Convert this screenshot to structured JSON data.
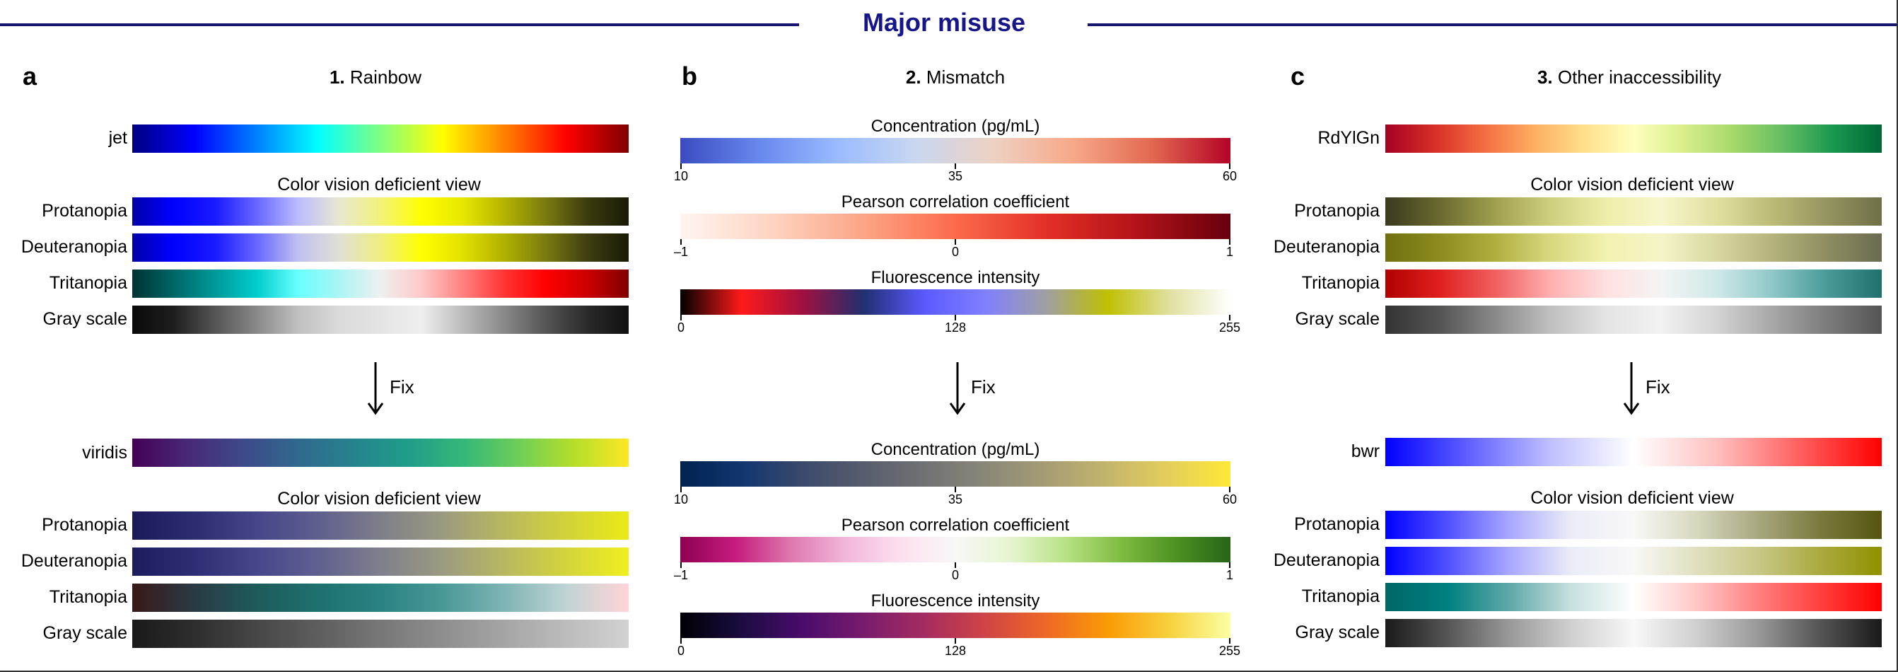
{
  "header": {
    "title": "Major misuse",
    "line_color": "#16166e"
  },
  "panels": [
    {
      "letter": "a",
      "number": "1.",
      "title": "Rainbow",
      "before": {
        "map_name": "jet",
        "cvd_title": "Color vision deficient view",
        "rows": [
          {
            "label": "Protanopia",
            "colors": [
              "#0000a8",
              "#0000ff",
              "#1a1aff",
              "#6666ff",
              "#bbbbff",
              "#e8e8d0",
              "#f2f27a",
              "#ffff00",
              "#e6e600",
              "#b3b300",
              "#7a7a10",
              "#3b3b10",
              "#1a1a05"
            ]
          },
          {
            "label": "Deuteranopia",
            "colors": [
              "#0000a8",
              "#0000ff",
              "#1a1aff",
              "#6666ff",
              "#c0c0f0",
              "#e0e0d6",
              "#eeee80",
              "#ffff00",
              "#e0e000",
              "#b0b000",
              "#7a7a10",
              "#3e3e12",
              "#1a1a05"
            ]
          },
          {
            "label": "Tritanopia",
            "colors": [
              "#003333",
              "#006666",
              "#009999",
              "#00cccc",
              "#66ffff",
              "#aaf5f5",
              "#eef0f0",
              "#ffc8c8",
              "#ff8080",
              "#ff3333",
              "#ff0000",
              "#cc0000",
              "#800000"
            ]
          },
          {
            "label": "Gray scale",
            "colors": [
              "#0a0a0a",
              "#1e1e1e",
              "#555555",
              "#888888",
              "#c0c0c0",
              "#dadada",
              "#e4e4e4",
              "#eeeeee",
              "#bbbbbb",
              "#888888",
              "#555555",
              "#2a2a2a",
              "#101010"
            ]
          }
        ],
        "main_colors": [
          "#00007f",
          "#0000ff",
          "#0080ff",
          "#00ffff",
          "#80ff80",
          "#ffff00",
          "#ff8000",
          "#ff0000",
          "#7f0000"
        ]
      },
      "fix_label": "Fix",
      "after": {
        "map_name": "viridis",
        "cvd_title": "Color vision deficient view",
        "main_colors": [
          "#440154",
          "#482878",
          "#3e4989",
          "#31688e",
          "#26828e",
          "#1f9e89",
          "#35b779",
          "#6ece58",
          "#b5de2b",
          "#fde725"
        ],
        "rows": [
          {
            "label": "Protanopia",
            "colors": [
              "#1a1a5a",
              "#2c2c72",
              "#45458a",
              "#5f5f8f",
              "#7e7e8a",
              "#9a9a80",
              "#b8b860",
              "#d2d23a",
              "#eaea18"
            ]
          },
          {
            "label": "Deuteranopia",
            "colors": [
              "#1c1c5e",
              "#2e2e76",
              "#46468c",
              "#606090",
              "#7f7f8c",
              "#9b9b82",
              "#b8b862",
              "#d4d43c",
              "#efef20"
            ]
          },
          {
            "label": "Tritanopia",
            "colors": [
              "#3a1818",
              "#2a3a44",
              "#1f5a5a",
              "#1f7070",
              "#2a8282",
              "#4a9898",
              "#7fb4b4",
              "#c0d4d4",
              "#ffd4d8"
            ]
          },
          {
            "label": "Gray scale",
            "colors": [
              "#1a1a1a",
              "#2e2e2e",
              "#474747",
              "#5e5e5e",
              "#777777",
              "#8e8e8e",
              "#a5a5a5",
              "#bcbcbc",
              "#d2d2d2"
            ]
          }
        ]
      }
    },
    {
      "letter": "b",
      "number": "2.",
      "title": "Mismatch",
      "fix_label": "Fix",
      "before_bars": [
        {
          "title": "Concentration (pg/mL)",
          "ticks": [
            "10",
            "35",
            "60"
          ],
          "colors": [
            "#3b4cc0",
            "#6788ee",
            "#9abbff",
            "#c9d7f0",
            "#edd1c2",
            "#f7a889",
            "#e26952",
            "#b40426"
          ]
        },
        {
          "title": "Pearson correlation coefficient",
          "ticks": [
            "–1",
            "0",
            "1"
          ],
          "colors": [
            "#fff5f0",
            "#fdd4c2",
            "#fca486",
            "#fb6b4b",
            "#e32f27",
            "#b11218",
            "#67000d"
          ]
        },
        {
          "title": "Fluorescence intensity",
          "ticks": [
            "0",
            "128",
            "255"
          ],
          "colors": [
            "#000000",
            "#ff1a1a",
            "#a01040",
            "#203070",
            "#5a5aff",
            "#8080ff",
            "#a0a0a0",
            "#c0c000",
            "#e0e0a0",
            "#ffffff"
          ]
        }
      ],
      "after_bars": [
        {
          "title": "Concentration (pg/mL)",
          "ticks": [
            "10",
            "35",
            "60"
          ],
          "colors": [
            "#00224e",
            "#123570",
            "#3b496c",
            "#575d6d",
            "#707173",
            "#8a8779",
            "#a69d75",
            "#c4b56c",
            "#e4cf5b",
            "#fee838"
          ]
        },
        {
          "title": "Pearson correlation coefficient",
          "ticks": [
            "–1",
            "0",
            "1"
          ],
          "colors": [
            "#8e0152",
            "#c51b7d",
            "#de77ae",
            "#f1b6da",
            "#fde0ef",
            "#f7f7f7",
            "#e6f5d0",
            "#b8e186",
            "#7fbc41",
            "#4d9221",
            "#276419"
          ]
        },
        {
          "title": "Fluorescence intensity",
          "ticks": [
            "0",
            "128",
            "255"
          ],
          "colors": [
            "#000004",
            "#1b0c41",
            "#4a0c6b",
            "#781c6d",
            "#a52c60",
            "#cf4446",
            "#ed6925",
            "#fb9b06",
            "#f7d13d",
            "#fcffa4"
          ]
        }
      ]
    },
    {
      "letter": "c",
      "number": "3.",
      "title": "Other inaccessibility",
      "fix_label": "Fix",
      "before": {
        "map_name": "RdYlGn",
        "cvd_title": "Color vision deficient view",
        "main_colors": [
          "#a50026",
          "#d73027",
          "#f46d43",
          "#fdae61",
          "#fee08b",
          "#ffffbf",
          "#d9ef8b",
          "#a6d96a",
          "#66bd63",
          "#1a9850",
          "#006837"
        ],
        "rows": [
          {
            "label": "Protanopia",
            "colors": [
              "#3a3a20",
              "#6a6a30",
              "#a0a050",
              "#cfcf80",
              "#eeeeaa",
              "#f6f6cc",
              "#e0e0a0",
              "#bcbc78",
              "#959560",
              "#6f6f48"
            ]
          },
          {
            "label": "Deuteranopia",
            "colors": [
              "#707010",
              "#8c8c20",
              "#b0b040",
              "#d8d880",
              "#f2f2b0",
              "#f4f4c8",
              "#d8d8a0",
              "#b4b47c",
              "#8e8e62",
              "#6a6a50"
            ]
          },
          {
            "label": "Tritanopia",
            "colors": [
              "#b00000",
              "#e02020",
              "#f06060",
              "#ffb0b0",
              "#ffe0e0",
              "#f4f4f4",
              "#d0e8e8",
              "#90c8c8",
              "#4a9a9a",
              "#207070"
            ]
          },
          {
            "label": "Gray scale",
            "colors": [
              "#333333",
              "#555555",
              "#8a8a8a",
              "#c0c0c0",
              "#e4e4e4",
              "#f2f2f2",
              "#d4d4d4",
              "#a8a8a8",
              "#7c7c7c",
              "#555555"
            ]
          }
        ]
      },
      "after": {
        "map_name": "bwr",
        "cvd_title": "Color vision deficient view",
        "main_colors": [
          "#0000ff",
          "#6060ff",
          "#c0c0ff",
          "#ffffff",
          "#ffc0c0",
          "#ff6060",
          "#ff0000"
        ],
        "rows": [
          {
            "label": "Protanopia",
            "colors": [
              "#0000ff",
              "#5050ff",
              "#a8a8ff",
              "#ececf8",
              "#f8f8f8",
              "#d8d8c0",
              "#a8a880",
              "#7a7a40",
              "#555510"
            ]
          },
          {
            "label": "Deuteranopia",
            "colors": [
              "#0000ff",
              "#5050ff",
              "#a8a8ff",
              "#ececf8",
              "#f8f8f8",
              "#e0e0c0",
              "#c8c888",
              "#aaaa40",
              "#909000"
            ]
          },
          {
            "label": "Tritanopia",
            "colors": [
              "#006666",
              "#008080",
              "#60a8a8",
              "#c8e0e0",
              "#ffffff",
              "#ffc8c8",
              "#ff8080",
              "#ff4040",
              "#ff0000"
            ]
          },
          {
            "label": "Gray scale",
            "colors": [
              "#1a1a1a",
              "#555555",
              "#999999",
              "#d0d0d0",
              "#f8f8f8",
              "#d0d0d0",
              "#999999",
              "#555555",
              "#1a1a1a"
            ]
          }
        ]
      }
    }
  ]
}
